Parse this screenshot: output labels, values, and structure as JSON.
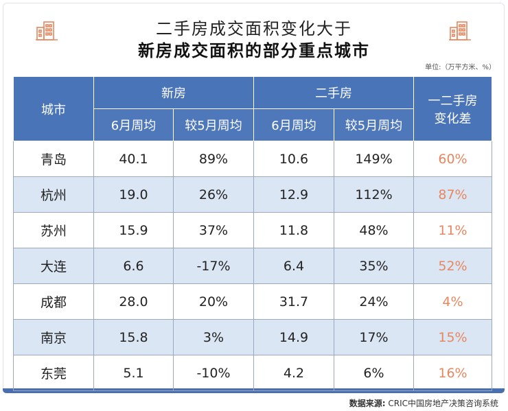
{
  "header": {
    "title_line1": "二手房成交面积变化大于",
    "title_line2": "新房成交面积的部分重点城市",
    "unit": "单位:（万平方米、%）",
    "icons": [
      "buildings-icon",
      "buildings-icon"
    ]
  },
  "footer": {
    "source_label": "数据来源:",
    "source_text": " CRIC中国房地产决策咨询系统"
  },
  "colors": {
    "header_bg": "#4a74b8",
    "alt_row_bg": "#dbe6f4",
    "diff_text": "#e6875f",
    "bottom_bar": "#4a6fb0"
  },
  "chart_data": {
    "type": "table",
    "title": "二手房成交面积变化大于新房成交面积的部分重点城市",
    "unit": "单位:（万平方米、%）",
    "columns": {
      "city": "城市",
      "new_group": "新房",
      "second_group": "二手房",
      "diff": "一二手房变化差",
      "diff_line1": "一二手房",
      "diff_line2": "变化差",
      "june_avg": "6月周均",
      "vs_may": "较5月周均"
    },
    "rows": [
      {
        "city": "青岛",
        "new_june": "40.1",
        "new_vs_may": "89%",
        "sec_june": "10.6",
        "sec_vs_may": "149%",
        "diff": "60%"
      },
      {
        "city": "杭州",
        "new_june": "19.0",
        "new_vs_may": "26%",
        "sec_june": "12.9",
        "sec_vs_may": "112%",
        "diff": "87%"
      },
      {
        "city": "苏州",
        "new_june": "15.9",
        "new_vs_may": "37%",
        "sec_june": "11.8",
        "sec_vs_may": "48%",
        "diff": "11%"
      },
      {
        "city": "大连",
        "new_june": "6.6",
        "new_vs_may": "-17%",
        "sec_june": "6.4",
        "sec_vs_may": "35%",
        "diff": "52%"
      },
      {
        "city": "成都",
        "new_june": "28.0",
        "new_vs_may": "20%",
        "sec_june": "31.7",
        "sec_vs_may": "24%",
        "diff": "4%"
      },
      {
        "city": "南京",
        "new_june": "15.8",
        "new_vs_may": "3%",
        "sec_june": "14.9",
        "sec_vs_may": "17%",
        "diff": "15%"
      },
      {
        "city": "东莞",
        "new_june": "5.1",
        "new_vs_may": "-10%",
        "sec_june": "4.2",
        "sec_vs_may": "6%",
        "diff": "16%"
      }
    ]
  }
}
